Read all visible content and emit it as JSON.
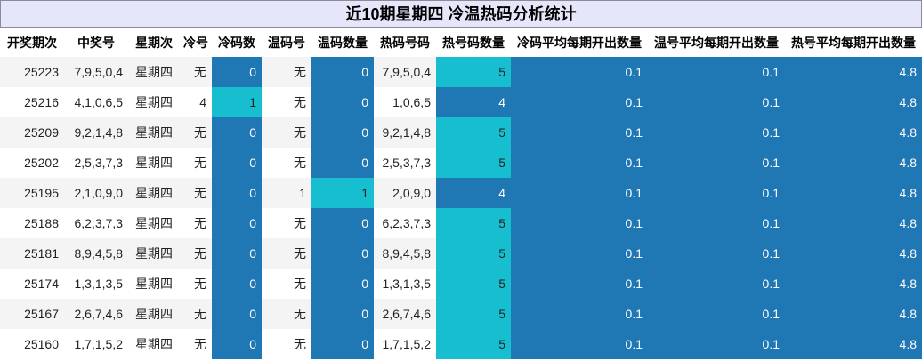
{
  "title": "近10期星期四 冷温热码分析统计",
  "headers": [
    "开奖期次",
    "中奖号",
    "星期次",
    "冷号",
    "冷码数",
    "温码号",
    "温码数量",
    "热码号码",
    "热号码数量",
    "冷码平均每期开出数量",
    "温号平均每期开出数量",
    "热号平均每期开出数量"
  ],
  "rows": [
    {
      "period": "25223",
      "numbers": "7,9,5,0,4",
      "weekday": "星期四",
      "cold": "无",
      "cold_count": "0",
      "warm": "无",
      "warm_count": "0",
      "hot": "7,9,5,0,4",
      "hot_count": "5",
      "cold_avg": "0.1",
      "warm_avg": "0.1",
      "hot_avg": "4.8"
    },
    {
      "period": "25216",
      "numbers": "4,1,0,6,5",
      "weekday": "星期四",
      "cold": "4",
      "cold_count": "1",
      "warm": "无",
      "warm_count": "0",
      "hot": "1,0,6,5",
      "hot_count": "4",
      "cold_avg": "0.1",
      "warm_avg": "0.1",
      "hot_avg": "4.8"
    },
    {
      "period": "25209",
      "numbers": "9,2,1,4,8",
      "weekday": "星期四",
      "cold": "无",
      "cold_count": "0",
      "warm": "无",
      "warm_count": "0",
      "hot": "9,2,1,4,8",
      "hot_count": "5",
      "cold_avg": "0.1",
      "warm_avg": "0.1",
      "hot_avg": "4.8"
    },
    {
      "period": "25202",
      "numbers": "2,5,3,7,3",
      "weekday": "星期四",
      "cold": "无",
      "cold_count": "0",
      "warm": "无",
      "warm_count": "0",
      "hot": "2,5,3,7,3",
      "hot_count": "5",
      "cold_avg": "0.1",
      "warm_avg": "0.1",
      "hot_avg": "4.8"
    },
    {
      "period": "25195",
      "numbers": "2,1,0,9,0",
      "weekday": "星期四",
      "cold": "无",
      "cold_count": "0",
      "warm": "1",
      "warm_count": "1",
      "hot": "2,0,9,0",
      "hot_count": "4",
      "cold_avg": "0.1",
      "warm_avg": "0.1",
      "hot_avg": "4.8"
    },
    {
      "period": "25188",
      "numbers": "6,2,3,7,3",
      "weekday": "星期四",
      "cold": "无",
      "cold_count": "0",
      "warm": "无",
      "warm_count": "0",
      "hot": "6,2,3,7,3",
      "hot_count": "5",
      "cold_avg": "0.1",
      "warm_avg": "0.1",
      "hot_avg": "4.8"
    },
    {
      "period": "25181",
      "numbers": "8,9,4,5,8",
      "weekday": "星期四",
      "cold": "无",
      "cold_count": "0",
      "warm": "无",
      "warm_count": "0",
      "hot": "8,9,4,5,8",
      "hot_count": "5",
      "cold_avg": "0.1",
      "warm_avg": "0.1",
      "hot_avg": "4.8"
    },
    {
      "period": "25174",
      "numbers": "1,3,1,3,5",
      "weekday": "星期四",
      "cold": "无",
      "cold_count": "0",
      "warm": "无",
      "warm_count": "0",
      "hot": "1,3,1,3,5",
      "hot_count": "5",
      "cold_avg": "0.1",
      "warm_avg": "0.1",
      "hot_avg": "4.8"
    },
    {
      "period": "25167",
      "numbers": "2,6,7,4,6",
      "weekday": "星期四",
      "cold": "无",
      "cold_count": "0",
      "warm": "无",
      "warm_count": "0",
      "hot": "2,6,7,4,6",
      "hot_count": "5",
      "cold_avg": "0.1",
      "warm_avg": "0.1",
      "hot_avg": "4.8"
    },
    {
      "period": "25160",
      "numbers": "1,7,1,5,2",
      "weekday": "星期四",
      "cold": "无",
      "cold_count": "0",
      "warm": "无",
      "warm_count": "0",
      "hot": "1,7,1,5,2",
      "hot_count": "5",
      "cold_avg": "0.1",
      "warm_avg": "0.1",
      "hot_avg": "4.8"
    }
  ],
  "colors": {
    "low": "#1f77b4",
    "high": "#17becf",
    "title_bg": "#e6e6fa"
  }
}
